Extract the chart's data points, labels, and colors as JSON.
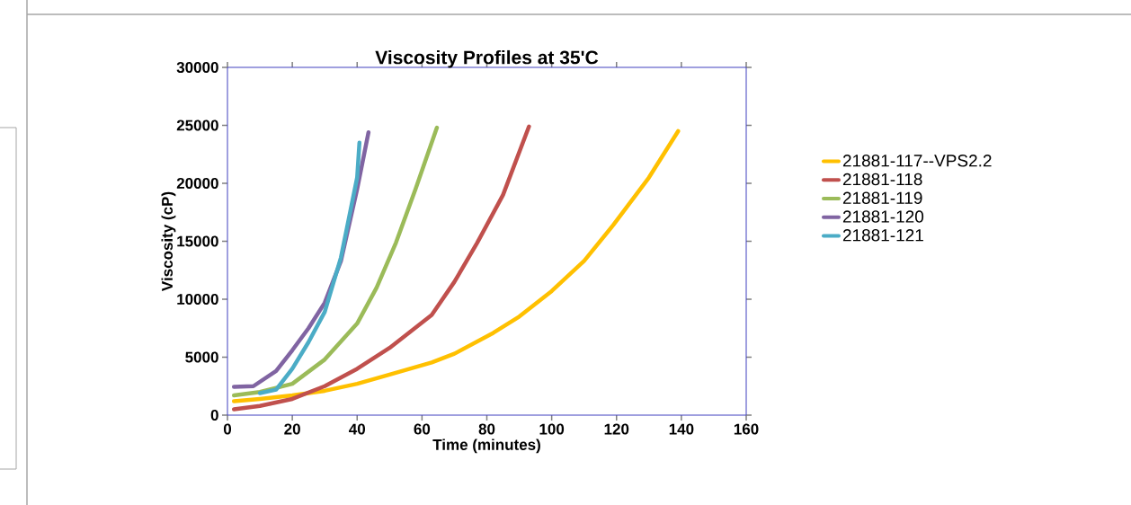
{
  "chart_data": {
    "type": "line",
    "title": "Viscosity Profiles at 35'C",
    "xlabel": "Time (minutes)",
    "ylabel": "Viscosity (cP)",
    "xlim": [
      0,
      160
    ],
    "xticks": [
      0,
      20,
      40,
      60,
      80,
      100,
      120,
      140,
      160
    ],
    "ylim": [
      0,
      30000
    ],
    "yticks": [
      0,
      5000,
      10000,
      15000,
      20000,
      25000,
      30000
    ],
    "grid": false,
    "legend": "right",
    "marker": "none",
    "line_style": "solid",
    "series": [
      {
        "name": "21881-117--VPS2.2",
        "color": "#ffc000",
        "x": [
          2,
          10,
          20,
          30,
          40,
          50,
          63,
          70,
          82,
          90,
          100,
          110,
          119,
          130,
          139
        ],
        "values": [
          1200,
          1400,
          1700,
          2100,
          2700,
          3500,
          4550,
          5300,
          7100,
          8500,
          10700,
          13300,
          16400,
          20500,
          24500
        ]
      },
      {
        "name": "21881-118",
        "color": "#c0504d",
        "x": [
          2,
          10,
          20,
          30,
          40,
          50,
          63,
          70,
          77,
          85,
          93
        ],
        "values": [
          500,
          800,
          1400,
          2500,
          4000,
          5800,
          8650,
          11500,
          14850,
          19000,
          24900
        ]
      },
      {
        "name": "21881-119",
        "color": "#9bbb59",
        "x": [
          2,
          10,
          20,
          30,
          40,
          46,
          52,
          58,
          64.6
        ],
        "values": [
          1700,
          2000,
          2700,
          4800,
          7900,
          11000,
          14900,
          19500,
          24800
        ]
      },
      {
        "name": "21881-120",
        "color": "#8064a2",
        "x": [
          2,
          8,
          15,
          20,
          25,
          30,
          35,
          40,
          43.5
        ],
        "values": [
          2450,
          2500,
          3800,
          5600,
          7500,
          9700,
          13300,
          19500,
          24400
        ]
      },
      {
        "name": "21881-121",
        "color": "#4bacc6",
        "x": [
          10,
          15,
          20,
          25,
          30,
          35,
          40,
          40.7
        ],
        "values": [
          1900,
          2200,
          4000,
          6300,
          8900,
          13600,
          20500,
          23500
        ]
      }
    ]
  }
}
